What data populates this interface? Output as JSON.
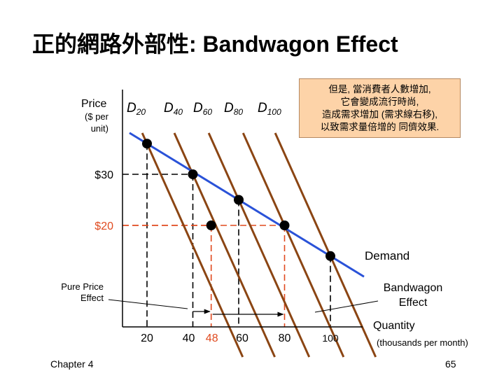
{
  "slide": {
    "title": "正的網路外部性: Bandwagon Effect",
    "note_lines": [
      "但是, 當消費者人數增加,",
      "它會變成流行時尚,",
      "造成需求增加 (需求線右移),",
      "以致需求量倍增的 同儕效果."
    ],
    "chapter": "Chapter 4",
    "page": "65"
  },
  "chart_data": {
    "type": "line",
    "y_axis": {
      "label": "Price",
      "sublabel_lines": [
        "($ per",
        "unit)"
      ],
      "ticks": [
        {
          "value": 30,
          "label": "$30"
        },
        {
          "value": 20,
          "label": "$20"
        }
      ]
    },
    "x_axis": {
      "label": "Quantity",
      "sublabel": "(thousands per month)",
      "ticks": [
        {
          "value": 20,
          "label": "20"
        },
        {
          "value": 40,
          "label": "40"
        },
        {
          "value": 48,
          "label": "48",
          "color": "#e04a1f"
        },
        {
          "value": 60,
          "label": "60"
        },
        {
          "value": 80,
          "label": "80"
        },
        {
          "value": 100,
          "label": "100"
        }
      ]
    },
    "series": [
      {
        "name": "D20",
        "base": "D",
        "sub": "20",
        "color": "#8b4513"
      },
      {
        "name": "D40",
        "base": "D",
        "sub": "40",
        "color": "#8b4513"
      },
      {
        "name": "D60",
        "base": "D",
        "sub": "60",
        "color": "#8b4513"
      },
      {
        "name": "D80",
        "base": "D",
        "sub": "80",
        "color": "#8b4513"
      },
      {
        "name": "D100",
        "base": "D",
        "sub": "100",
        "color": "#8b4513"
      }
    ],
    "demand": {
      "name": "Demand",
      "color": "#2a52d8",
      "points": [
        {
          "x": 20,
          "y": 36
        },
        {
          "x": 100,
          "y": 14
        }
      ]
    },
    "points": [
      {
        "x": 20,
        "y": 36,
        "curve": "D20"
      },
      {
        "x": 40,
        "y": 30,
        "curve": "D40"
      },
      {
        "x": 60,
        "y": 25,
        "curve": "D60"
      },
      {
        "x": 80,
        "y": 20,
        "curve": "D80"
      },
      {
        "x": 100,
        "y": 14,
        "curve": "D100"
      },
      {
        "x": 48,
        "y": 20,
        "curve": "D40"
      }
    ],
    "guides": [
      {
        "from": "price-20",
        "to_x": 48,
        "color": "#e04a1f"
      },
      {
        "from": "price-20",
        "to_x": 80,
        "color": "#e04a1f"
      },
      {
        "from": "price-30",
        "to_x": 40,
        "color": "#000000"
      }
    ],
    "annotations": [
      {
        "text": "Pure Price Effect",
        "lines": [
          "Pure Price",
          "Effect"
        ],
        "arrow_from_x": 40,
        "arrow_to_x": 48
      },
      {
        "text": "Bandwagon Effect",
        "lines": [
          "Bandwagon",
          "Effect"
        ],
        "arrow_from_x": 48,
        "arrow_to_x": 80
      }
    ]
  }
}
